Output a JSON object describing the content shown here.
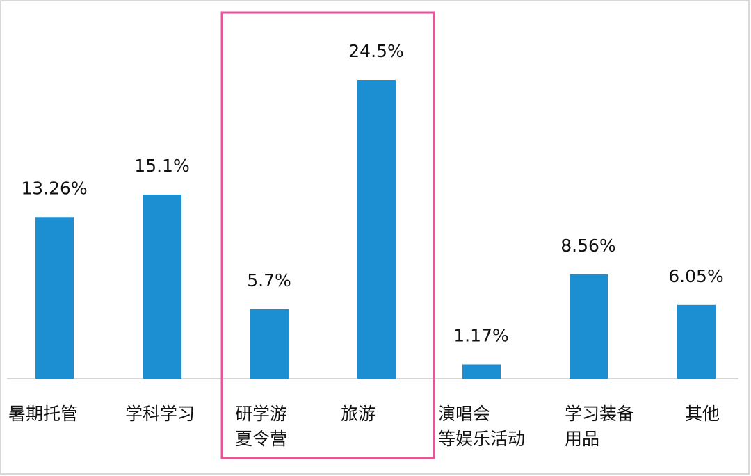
{
  "chart_data": {
    "type": "bar",
    "categories": [
      [
        "暑期托管"
      ],
      [
        "学科学习"
      ],
      [
        "研学游",
        "夏令营"
      ],
      [
        "旅游"
      ],
      [
        "演唱会",
        "等娱乐活动"
      ],
      [
        "学习装备",
        "用品"
      ],
      [
        "其他"
      ]
    ],
    "values": [
      13.26,
      15.1,
      5.7,
      24.5,
      1.17,
      8.56,
      6.05
    ],
    "value_labels": [
      "13.26%",
      "15.1%",
      "5.7%",
      "24.5%",
      "1.17%",
      "8.56%",
      "6.05%"
    ],
    "color": "#1b8fd2"
  }
}
